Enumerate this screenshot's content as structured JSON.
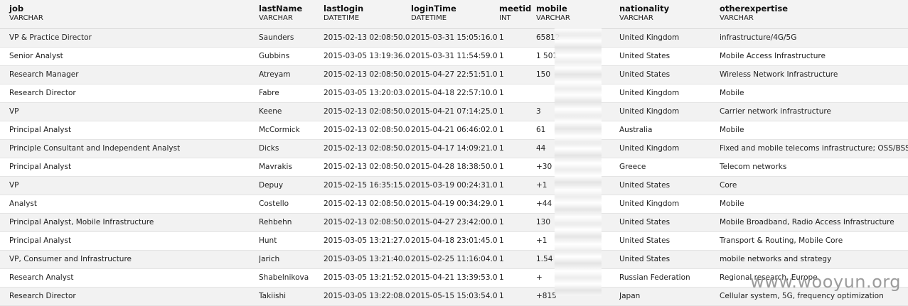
{
  "columns": [
    {
      "name": "job",
      "type": "VARCHAR"
    },
    {
      "name": "lastName",
      "type": "VARCHAR"
    },
    {
      "name": "lastlogin",
      "type": "DATETIME"
    },
    {
      "name": "loginTime",
      "type": "DATETIME"
    },
    {
      "name": "meetid",
      "type": "INT"
    },
    {
      "name": "mobile",
      "type": "VARCHAR"
    },
    {
      "name": "nationality",
      "type": "VARCHAR"
    },
    {
      "name": "otherexpertise",
      "type": "VARCHAR"
    }
  ],
  "rows": [
    [
      "VP & Practice Director",
      "Saunders",
      "2015-02-13 02:08:50.0",
      "2015-03-31 15:05:16.0",
      "1",
      "65812",
      "United Kingdom",
      "infrastructure/4G/5G"
    ],
    [
      "Senior Analyst",
      "Gubbins",
      "2015-03-05 13:19:36.0",
      "2015-03-31 11:54:59.0",
      "1",
      "1 501",
      "United States",
      "Mobile Access Infrastructure"
    ],
    [
      "Research Manager",
      "Atreyam",
      "2015-02-13 02:08:50.0",
      "2015-04-27 22:51:51.0",
      "1",
      "150",
      "United States",
      "Wireless Network Infrastructure"
    ],
    [
      "Research Director",
      "Fabre",
      "2015-03-05 13:20:03.0",
      "2015-04-18 22:57:10.0",
      "1",
      "",
      "United Kingdom",
      "Mobile"
    ],
    [
      "VP",
      "Keene",
      "2015-02-13 02:08:50.0",
      "2015-04-21 07:14:25.0",
      "1",
      "3",
      "United Kingdom",
      "Carrier network infrastructure"
    ],
    [
      "Principal Analyst",
      "McCormick",
      "2015-02-13 02:08:50.0",
      "2015-04-21 06:46:02.0",
      "1",
      "61",
      "Australia",
      "Mobile"
    ],
    [
      "Principle Consultant and Independent Analyst",
      "Dicks",
      "2015-02-13 02:08:50.0",
      "2015-04-17 14:09:21.0",
      "1",
      "44",
      "United Kingdom",
      "Fixed and mobile telecoms infrastructure; OSS/BSS"
    ],
    [
      "Principal Analyst",
      "Mavrakis",
      "2015-02-13 02:08:50.0",
      "2015-04-28 18:38:50.0",
      "1",
      "+30",
      "Greece",
      "Telecom networks"
    ],
    [
      "VP",
      "Depuy",
      "2015-02-15 16:35:15.0",
      "2015-03-19 00:24:31.0",
      "1",
      "+1",
      "United States",
      "Core"
    ],
    [
      "Analyst",
      "Costello",
      "2015-02-13 02:08:50.0",
      "2015-04-19 00:34:29.0",
      "1",
      "+44",
      "United Kingdom",
      "Mobile"
    ],
    [
      "Principal Analyst, Mobile Infrastructure",
      "Rehbehn",
      "2015-02-13 02:08:50.0",
      "2015-04-27 23:42:00.0",
      "1",
      "130",
      "United States",
      "Mobile Broadband, Radio Access Infrastructure"
    ],
    [
      "Principal Analyst",
      "Hunt",
      "2015-03-05 13:21:27.0",
      "2015-04-18 23:01:45.0",
      "1",
      "+1",
      "United States",
      "Transport & Routing, Mobile Core"
    ],
    [
      "VP, Consumer and Infrastructure",
      "Jarich",
      "2015-03-05 13:21:40.0",
      "2015-02-25 11:16:04.0",
      "1",
      "1.54",
      "United States",
      "mobile networks and strategy"
    ],
    [
      "Research Analyst",
      "Shabelnikova",
      "2015-03-05 13:21:52.0",
      "2015-04-21 13:39:53.0",
      "1",
      "+",
      "Russian Federation",
      "Regional research, Europe"
    ],
    [
      "Research Director",
      "Takiishi",
      "2015-03-05 13:22:08.0",
      "2015-05-15 15:03:54.0",
      "1",
      "+815",
      "Japan",
      "Cellular system, 5G, frequency optimization"
    ]
  ],
  "watermark": "www.wooyun.org"
}
